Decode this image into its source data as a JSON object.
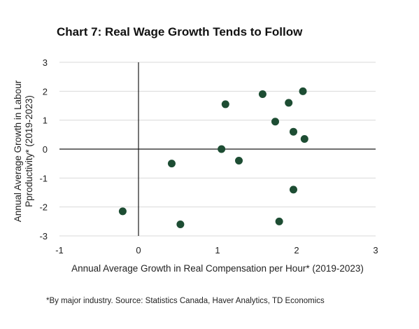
{
  "chart_data": {
    "type": "scatter",
    "title": "Chart 7: Real Wage Growth Tends to Follow",
    "xlabel": "Annual Average Growth in Real Compensation per Hour* (2019-2023)",
    "ylabel_lines": [
      "Annual Average Growth in Labour",
      "Pproductivity* (2019-2023)"
    ],
    "xlim": [
      -1,
      3
    ],
    "ylim": [
      -3,
      3
    ],
    "xticks": [
      -1,
      0,
      1,
      2,
      3
    ],
    "yticks": [
      -3,
      -2,
      -1,
      0,
      1,
      2,
      3
    ],
    "grid": "horizontal",
    "point_color": "#1d4d33",
    "points": [
      {
        "x": -0.2,
        "y": -2.15
      },
      {
        "x": 0.42,
        "y": -0.5
      },
      {
        "x": 0.53,
        "y": -2.6
      },
      {
        "x": 1.05,
        "y": 0.0
      },
      {
        "x": 1.1,
        "y": 1.55
      },
      {
        "x": 1.27,
        "y": -0.4
      },
      {
        "x": 1.57,
        "y": 1.9
      },
      {
        "x": 1.73,
        "y": 0.95
      },
      {
        "x": 1.78,
        "y": -2.5
      },
      {
        "x": 1.9,
        "y": 1.6
      },
      {
        "x": 1.96,
        "y": 0.6
      },
      {
        "x": 1.96,
        "y": -1.4
      },
      {
        "x": 2.08,
        "y": 2.0
      },
      {
        "x": 2.1,
        "y": 0.35
      }
    ]
  },
  "footnote": "*By major industry. Source: Statistics Canada, Haver Analytics, TD Economics"
}
